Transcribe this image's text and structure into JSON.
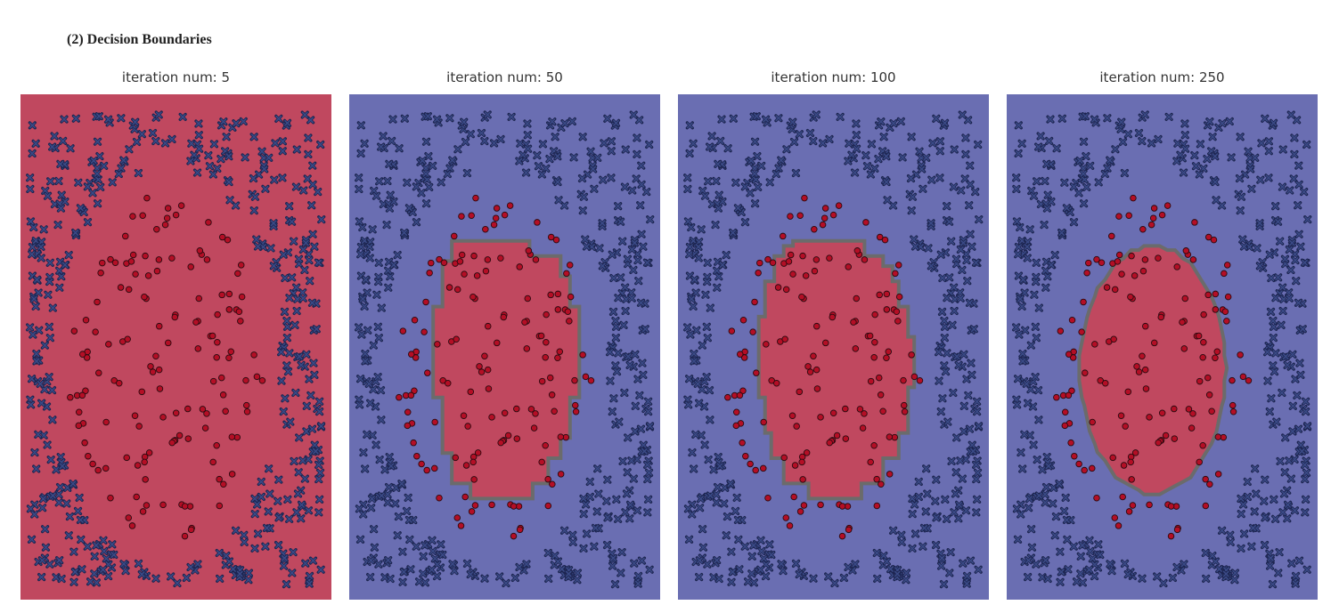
{
  "figure_title": "(2) Decision Boundaries",
  "colors": {
    "class_pos": "#c0485f",
    "class_neg": "#6a6eb2",
    "boundary": "#6b6b6b",
    "pos_point": "#b40e25",
    "neg_point": "#3a4a86"
  },
  "chart_data": [
    {
      "type": "scatter",
      "title": "iteration num: 5",
      "background_class": "positive",
      "region": "none",
      "xlim": [
        0,
        1
      ],
      "ylim": [
        0,
        1
      ]
    },
    {
      "type": "scatter",
      "title": "iteration num: 50",
      "background_class": "negative",
      "region": "blocky",
      "xlim": [
        0,
        1
      ],
      "ylim": [
        0,
        1
      ]
    },
    {
      "type": "scatter",
      "title": "iteration num: 100",
      "background_class": "negative",
      "region": "octagon",
      "xlim": [
        0,
        1
      ],
      "ylim": [
        0,
        1
      ]
    },
    {
      "type": "scatter",
      "title": "iteration num: 250",
      "background_class": "negative",
      "region": "ellipse",
      "xlim": [
        0,
        1
      ],
      "ylim": [
        0,
        1
      ]
    }
  ],
  "points": {
    "description_of_classes": [
      "negative (outer, x markers)",
      "positive (inner, circle markers)"
    ],
    "seed": 7
  }
}
